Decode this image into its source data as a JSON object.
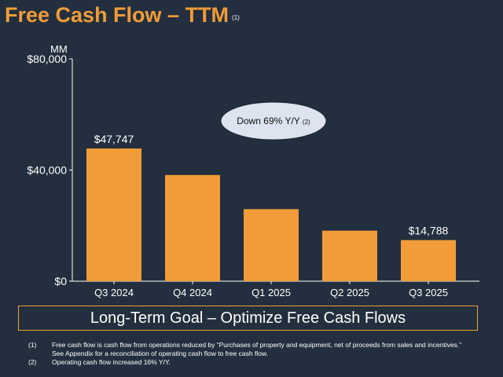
{
  "title": "Free Cash Flow – TTM",
  "title_note": "(1)",
  "chart_data": {
    "type": "bar",
    "unit_label": "MM",
    "categories": [
      "Q3 2024",
      "Q4 2024",
      "Q1 2025",
      "Q2 2025",
      "Q3 2025"
    ],
    "values": [
      47747,
      38219,
      25925,
      18184,
      14788
    ],
    "data_labels": [
      "$47,747",
      "",
      "",
      "",
      "$14,788"
    ],
    "yticks": [
      {
        "value": 0,
        "label": "$0"
      },
      {
        "value": 40000,
        "label": "$40,000"
      },
      {
        "value": 80000,
        "label": "$80,000"
      }
    ],
    "ylim": [
      0,
      80000
    ],
    "bar_color": "#f19c38",
    "callout": {
      "text": "Down 69% Y/Y",
      "note": "(2)"
    }
  },
  "goal": "Long-Term Goal – Optimize Free Cash Flows",
  "footnotes": [
    {
      "num": "(1)",
      "lines": [
        "Free cash flow is cash flow from operations reduced by “Purchases of property and equipment, net of proceeds from sales and incentives.”",
        "See Appendix for a reconciliation of operating cash flow to free cash flow."
      ]
    },
    {
      "num": "(2)",
      "lines": [
        "Operating cash flow increased 16% Y/Y."
      ]
    }
  ],
  "colors": {
    "background": "#232f3e",
    "accent": "#f19c38",
    "callout_fill": "#dde3ef"
  }
}
